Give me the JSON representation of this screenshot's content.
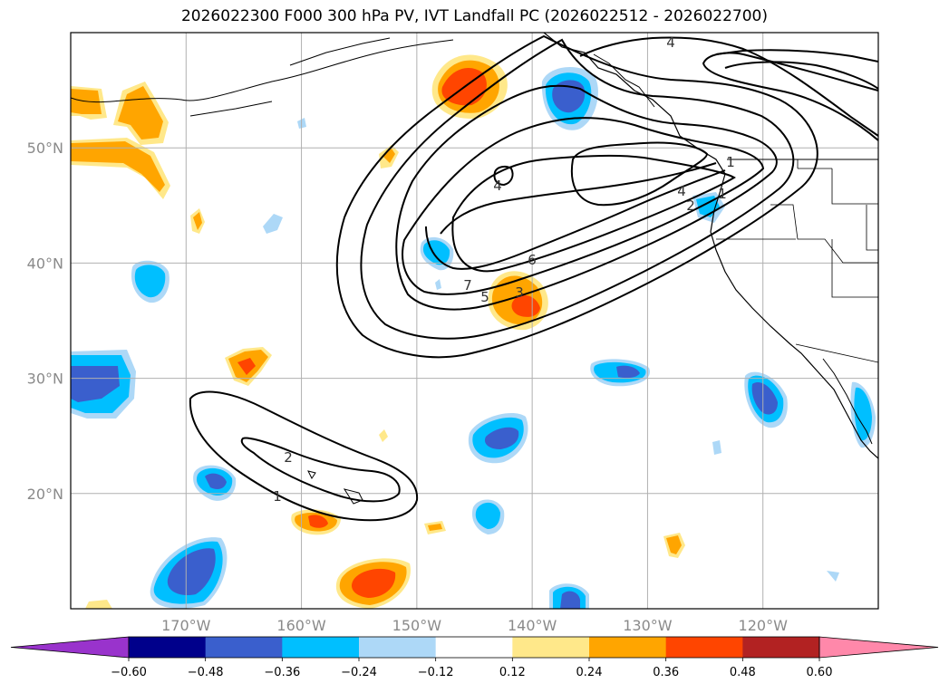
{
  "title": "2026022300 F000 300 hPa PV, IVT Landfall PC (2026022512 - 2026022700)",
  "map": {
    "lat_labels": [
      "50°N",
      "40°N",
      "30°N",
      "20°N"
    ],
    "lat_values": [
      50,
      40,
      30,
      20
    ],
    "lon_labels": [
      "170°W",
      "160°W",
      "150°W",
      "140°W",
      "130°W",
      "120°W"
    ],
    "lon_values": [
      -170,
      -160,
      -150,
      -140,
      -130,
      -120
    ],
    "extent": {
      "lon_min": -180,
      "lon_max": -110,
      "lat_min": 10,
      "lat_max": 60
    },
    "gridlines": true,
    "contour_labels": [
      "4",
      "4",
      "4",
      "1",
      "2",
      "6",
      "7",
      "5",
      "3",
      "2",
      "1",
      "1"
    ]
  },
  "colorbar": {
    "levels": [
      "−0.60",
      "−0.48",
      "−0.36",
      "−0.24",
      "−0.12",
      "0.12",
      "0.24",
      "0.36",
      "0.48",
      "0.60"
    ],
    "colors": [
      "#9933cc",
      "#00008b",
      "#3a5fcd",
      "#00bfff",
      "#add8f7",
      "#ffffff",
      "#ffe88a",
      "#ffa500",
      "#ff4500",
      "#b22222",
      "#ff88aa"
    ],
    "extend": "both"
  },
  "colors": {
    "contour": "#000000",
    "grid": "#b0b0b0",
    "coast": "#000000"
  }
}
